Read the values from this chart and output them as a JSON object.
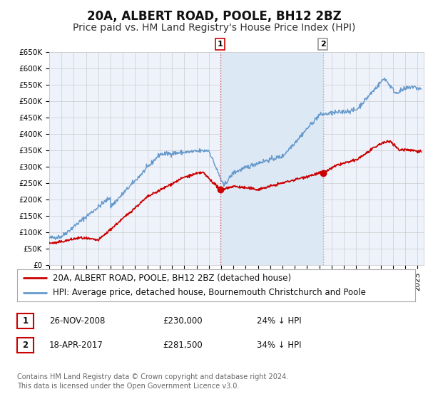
{
  "title": "20A, ALBERT ROAD, POOLE, BH12 2BZ",
  "subtitle": "Price paid vs. HM Land Registry's House Price Index (HPI)",
  "ylim": [
    0,
    650000
  ],
  "xlim_start": 1995.0,
  "xlim_end": 2025.5,
  "yticks": [
    0,
    50000,
    100000,
    150000,
    200000,
    250000,
    300000,
    350000,
    400000,
    450000,
    500000,
    550000,
    600000,
    650000
  ],
  "ytick_labels": [
    "£0",
    "£50K",
    "£100K",
    "£150K",
    "£200K",
    "£250K",
    "£300K",
    "£350K",
    "£400K",
    "£450K",
    "£500K",
    "£550K",
    "£600K",
    "£650K"
  ],
  "xticks": [
    1995,
    1996,
    1997,
    1998,
    1999,
    2000,
    2001,
    2002,
    2003,
    2004,
    2005,
    2006,
    2007,
    2008,
    2009,
    2010,
    2011,
    2012,
    2013,
    2014,
    2015,
    2016,
    2017,
    2018,
    2019,
    2020,
    2021,
    2022,
    2023,
    2024,
    2025
  ],
  "marker1_x": 2008.92,
  "marker1_y": 230000,
  "marker1_label": "1",
  "marker1_date": "26-NOV-2008",
  "marker1_price": "£230,000",
  "marker1_pct": "24% ↓ HPI",
  "marker2_x": 2017.29,
  "marker2_y": 281500,
  "marker2_label": "2",
  "marker2_date": "18-APR-2017",
  "marker2_price": "£281,500",
  "marker2_pct": "34% ↓ HPI",
  "line1_color": "#cc0000",
  "line2_color": "#6699cc",
  "marker_color": "#cc0000",
  "grid_color": "#cccccc",
  "bg_color": "#eef2fb",
  "span_color": "#dde8f5",
  "legend1_label": "20A, ALBERT ROAD, POOLE, BH12 2BZ (detached house)",
  "legend2_label": "HPI: Average price, detached house, Bournemouth Christchurch and Poole",
  "footer_line1": "Contains HM Land Registry data © Crown copyright and database right 2024.",
  "footer_line2": "This data is licensed under the Open Government Licence v3.0.",
  "title_fontsize": 12,
  "subtitle_fontsize": 10,
  "tick_fontsize": 7.5,
  "legend_fontsize": 8.5,
  "footer_fontsize": 7
}
